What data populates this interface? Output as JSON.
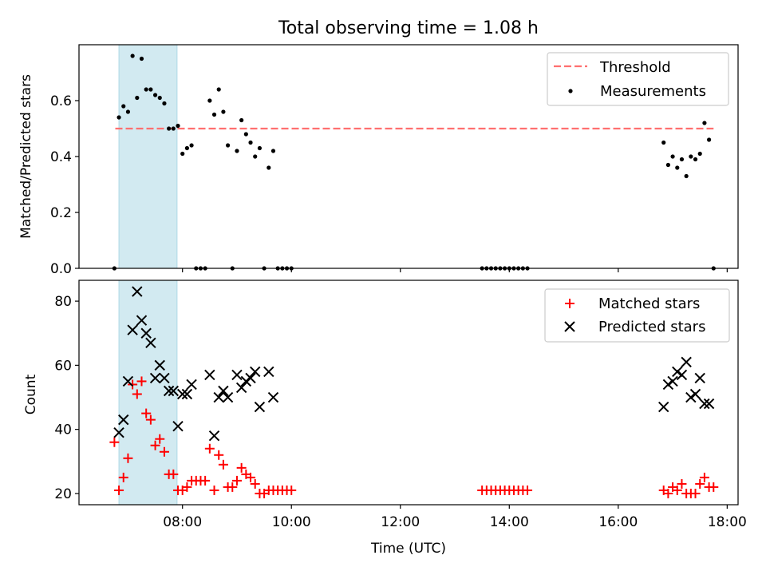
{
  "title": "Total observing time = 1.08 h",
  "colors": {
    "threshold": "#ff7070",
    "measurement": "#000000",
    "matched": "#ff0000",
    "predicted": "#000000",
    "shade": "#add8e6"
  },
  "chart_data": [
    {
      "type": "scatter",
      "ylabel": "Matched/Predicted stars",
      "ylim": [
        0,
        0.8
      ],
      "yticks": [
        "0.0",
        "0.2",
        "0.4",
        "0.6"
      ],
      "grid": false,
      "legend_position": "top-right",
      "threshold": {
        "name": "Threshold",
        "y": 0.5,
        "x_range": [
          "06:46",
          "17:45"
        ]
      },
      "shaded_interval": [
        "06:50",
        "07:54"
      ],
      "series": [
        {
          "name": "Measurements",
          "marker": "dot",
          "points": [
            [
              "06:45",
              0.0
            ],
            [
              "06:50",
              0.54
            ],
            [
              "06:55",
              0.58
            ],
            [
              "07:00",
              0.56
            ],
            [
              "07:05",
              0.76
            ],
            [
              "07:10",
              0.61
            ],
            [
              "07:15",
              0.75
            ],
            [
              "07:20",
              0.64
            ],
            [
              "07:25",
              0.64
            ],
            [
              "07:30",
              0.62
            ],
            [
              "07:35",
              0.61
            ],
            [
              "07:40",
              0.59
            ],
            [
              "07:45",
              0.5
            ],
            [
              "07:50",
              0.5
            ],
            [
              "07:55",
              0.51
            ],
            [
              "08:00",
              0.41
            ],
            [
              "08:05",
              0.43
            ],
            [
              "08:10",
              0.44
            ],
            [
              "08:15",
              0.0
            ],
            [
              "08:20",
              0.0
            ],
            [
              "08:25",
              0.0
            ],
            [
              "08:30",
              0.6
            ],
            [
              "08:35",
              0.55
            ],
            [
              "08:40",
              0.64
            ],
            [
              "08:45",
              0.56
            ],
            [
              "08:50",
              0.44
            ],
            [
              "08:55",
              0.0
            ],
            [
              "09:00",
              0.42
            ],
            [
              "09:05",
              0.53
            ],
            [
              "09:10",
              0.48
            ],
            [
              "09:15",
              0.45
            ],
            [
              "09:20",
              0.4
            ],
            [
              "09:25",
              0.43
            ],
            [
              "09:30",
              0.0
            ],
            [
              "09:35",
              0.36
            ],
            [
              "09:40",
              0.42
            ],
            [
              "09:45",
              0.0
            ],
            [
              "09:50",
              0.0
            ],
            [
              "09:55",
              0.0
            ],
            [
              "10:00",
              0.0
            ],
            [
              "13:30",
              0.0
            ],
            [
              "13:35",
              0.0
            ],
            [
              "13:40",
              0.0
            ],
            [
              "13:45",
              0.0
            ],
            [
              "13:50",
              0.0
            ],
            [
              "13:55",
              0.0
            ],
            [
              "14:00",
              0.0
            ],
            [
              "14:05",
              0.0
            ],
            [
              "14:10",
              0.0
            ],
            [
              "14:15",
              0.0
            ],
            [
              "14:20",
              0.0
            ],
            [
              "16:50",
              0.45
            ],
            [
              "16:55",
              0.37
            ],
            [
              "17:00",
              0.4
            ],
            [
              "17:05",
              0.36
            ],
            [
              "17:10",
              0.39
            ],
            [
              "17:15",
              0.33
            ],
            [
              "17:20",
              0.4
            ],
            [
              "17:25",
              0.39
            ],
            [
              "17:30",
              0.41
            ],
            [
              "17:35",
              0.52
            ],
            [
              "17:40",
              0.46
            ],
            [
              "17:45",
              0.0
            ]
          ]
        }
      ]
    },
    {
      "type": "scatter",
      "xlabel": "Time (UTC)",
      "ylabel": "Count",
      "xlim": [
        "06:06",
        "18:12"
      ],
      "ylim": [
        16.5,
        86.5
      ],
      "yticks": [
        "20",
        "40",
        "60",
        "80"
      ],
      "xticks": [
        "08:00",
        "10:00",
        "12:00",
        "14:00",
        "16:00",
        "18:00"
      ],
      "grid": false,
      "legend_position": "top-right",
      "shaded_interval": [
        "06:50",
        "07:54"
      ],
      "series": [
        {
          "name": "Matched stars",
          "marker": "plus",
          "points": [
            [
              "06:45",
              36
            ],
            [
              "06:50",
              21
            ],
            [
              "06:55",
              25
            ],
            [
              "07:00",
              31
            ],
            [
              "07:05",
              54
            ],
            [
              "07:10",
              51
            ],
            [
              "07:15",
              55
            ],
            [
              "07:20",
              45
            ],
            [
              "07:25",
              43
            ],
            [
              "07:30",
              35
            ],
            [
              "07:35",
              37
            ],
            [
              "07:40",
              33
            ],
            [
              "07:45",
              26
            ],
            [
              "07:50",
              26
            ],
            [
              "07:55",
              21
            ],
            [
              "08:00",
              21
            ],
            [
              "08:05",
              22
            ],
            [
              "08:10",
              24
            ],
            [
              "08:15",
              24
            ],
            [
              "08:20",
              24
            ],
            [
              "08:25",
              24
            ],
            [
              "08:30",
              34
            ],
            [
              "08:35",
              21
            ],
            [
              "08:40",
              32
            ],
            [
              "08:45",
              29
            ],
            [
              "08:50",
              22
            ],
            [
              "08:55",
              22
            ],
            [
              "09:00",
              24
            ],
            [
              "09:05",
              28
            ],
            [
              "09:10",
              26
            ],
            [
              "09:15",
              25
            ],
            [
              "09:20",
              23
            ],
            [
              "09:25",
              20
            ],
            [
              "09:30",
              20
            ],
            [
              "09:35",
              21
            ],
            [
              "09:40",
              21
            ],
            [
              "09:45",
              21
            ],
            [
              "09:50",
              21
            ],
            [
              "09:55",
              21
            ],
            [
              "10:00",
              21
            ],
            [
              "13:30",
              21
            ],
            [
              "13:35",
              21
            ],
            [
              "13:40",
              21
            ],
            [
              "13:45",
              21
            ],
            [
              "13:50",
              21
            ],
            [
              "13:55",
              21
            ],
            [
              "14:00",
              21
            ],
            [
              "14:05",
              21
            ],
            [
              "14:10",
              21
            ],
            [
              "14:15",
              21
            ],
            [
              "14:20",
              21
            ],
            [
              "16:50",
              21
            ],
            [
              "16:55",
              20
            ],
            [
              "17:00",
              22
            ],
            [
              "17:05",
              21
            ],
            [
              "17:10",
              23
            ],
            [
              "17:15",
              20
            ],
            [
              "17:20",
              20
            ],
            [
              "17:25",
              20
            ],
            [
              "17:30",
              23
            ],
            [
              "17:35",
              25
            ],
            [
              "17:40",
              22
            ],
            [
              "17:45",
              22
            ]
          ]
        },
        {
          "name": "Predicted stars",
          "marker": "x",
          "points": [
            [
              "06:50",
              39
            ],
            [
              "06:55",
              43
            ],
            [
              "07:00",
              55
            ],
            [
              "07:05",
              71
            ],
            [
              "07:10",
              83
            ],
            [
              "07:15",
              74
            ],
            [
              "07:20",
              70
            ],
            [
              "07:25",
              67
            ],
            [
              "07:30",
              56
            ],
            [
              "07:35",
              60
            ],
            [
              "07:40",
              56
            ],
            [
              "07:45",
              52
            ],
            [
              "07:50",
              52
            ],
            [
              "07:55",
              41
            ],
            [
              "08:00",
              51
            ],
            [
              "08:05",
              51
            ],
            [
              "08:10",
              54
            ],
            [
              "08:30",
              57
            ],
            [
              "08:35",
              38
            ],
            [
              "08:40",
              50
            ],
            [
              "08:45",
              52
            ],
            [
              "08:50",
              50
            ],
            [
              "09:00",
              57
            ],
            [
              "09:05",
              53
            ],
            [
              "09:10",
              55
            ],
            [
              "09:15",
              56
            ],
            [
              "09:20",
              58
            ],
            [
              "09:25",
              47
            ],
            [
              "09:35",
              58
            ],
            [
              "09:40",
              50
            ],
            [
              "16:50",
              47
            ],
            [
              "16:55",
              54
            ],
            [
              "17:00",
              55
            ],
            [
              "17:05",
              58
            ],
            [
              "17:10",
              57
            ],
            [
              "17:15",
              61
            ],
            [
              "17:20",
              50
            ],
            [
              "17:25",
              51
            ],
            [
              "17:30",
              56
            ],
            [
              "17:35",
              48
            ],
            [
              "17:40",
              48
            ]
          ]
        }
      ]
    }
  ]
}
